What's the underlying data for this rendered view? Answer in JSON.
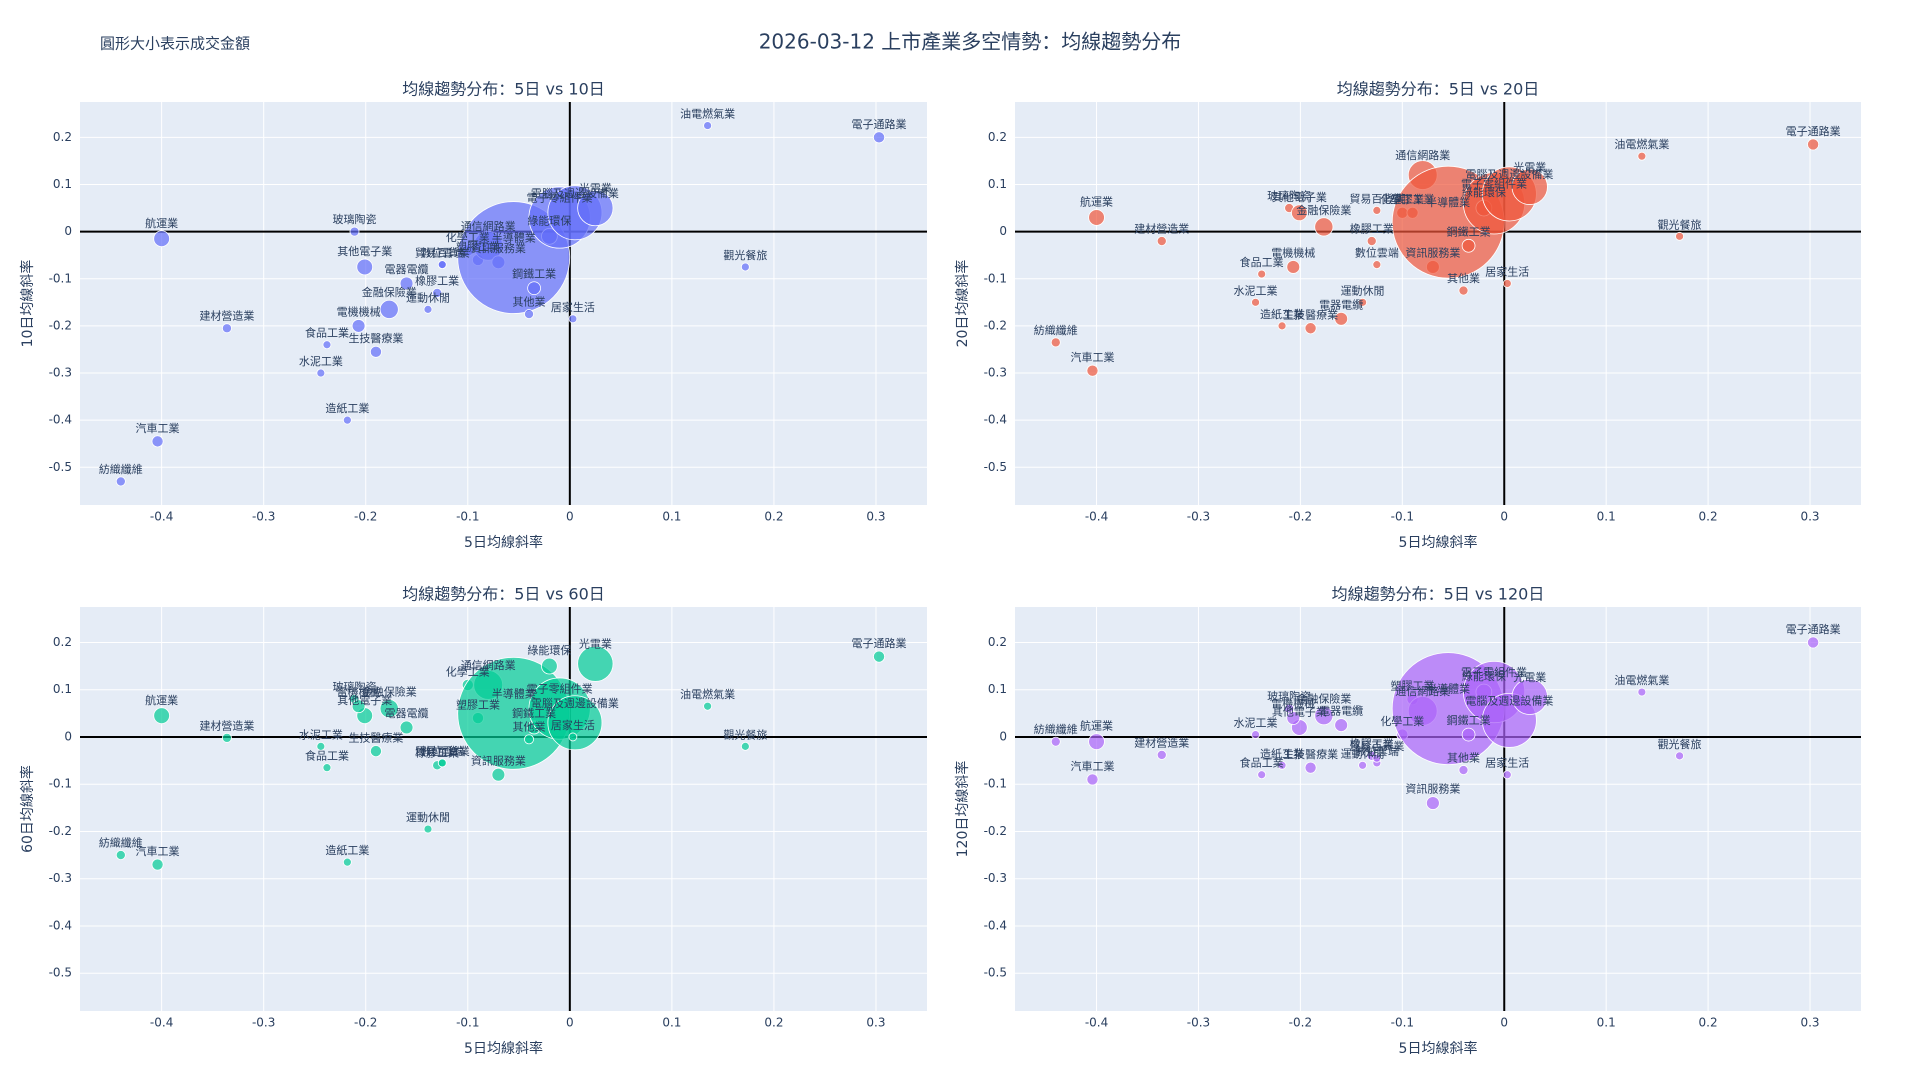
{
  "title": "2026-03-12 上市產業多空情勢：均線趨勢分布",
  "note": "圓形大小表示成交金額",
  "chart_data": [
    {
      "type": "scatter",
      "title": "均線趨勢分布：5日 vs 10日",
      "x_label": "5日均線斜率",
      "y_label": "10日均線斜率",
      "color": "#636efa",
      "categories": [
        "紡織纖維",
        "汽車工業",
        "航運業",
        "建材營造業",
        "水泥工業",
        "食品工業",
        "造紙工業",
        "玻璃陶瓷",
        "其他電子業",
        "電機機械",
        "生技醫療業",
        "金融保險業",
        "電器電纜",
        "運動休閒",
        "橡膠工業",
        "數位雲端",
        "貿易百貨業",
        "化學工業",
        "塑膠工業",
        "通信網路業",
        "資訊服務業",
        "半導體業",
        "其他業",
        "鋼鐵工業",
        "綠能環保",
        "電子零組件業",
        "電腦及週邊設備業",
        "居家生活",
        "光電業",
        "油電燃氣業",
        "觀光餐旅",
        "電子通路業"
      ],
      "x": [
        -0.44,
        -0.404,
        -0.4,
        -0.336,
        -0.244,
        -0.238,
        -0.218,
        -0.211,
        -0.201,
        -0.207,
        -0.19,
        -0.177,
        -0.16,
        -0.139,
        -0.13,
        -0.125,
        -0.125,
        -0.1,
        -0.09,
        -0.08,
        -0.07,
        -0.055,
        -0.04,
        -0.035,
        -0.02,
        -0.01,
        0.005,
        0.003,
        0.025,
        0.135,
        0.172,
        0.303
      ],
      "y": [
        -0.53,
        -0.445,
        -0.015,
        -0.205,
        -0.3,
        -0.24,
        -0.4,
        0.0,
        -0.075,
        -0.2,
        -0.255,
        -0.165,
        -0.11,
        -0.165,
        -0.13,
        -0.07,
        -0.07,
        -0.04,
        -0.06,
        -0.03,
        -0.065,
        -0.055,
        -0.175,
        -0.12,
        -0.01,
        0.03,
        0.04,
        -0.185,
        0.05,
        0.225,
        -0.075,
        0.2
      ],
      "sizes": [
        20,
        30,
        60,
        20,
        10,
        15,
        10,
        20,
        60,
        40,
        30,
        80,
        40,
        15,
        20,
        15,
        15,
        30,
        30,
        200,
        40,
        3000,
        20,
        40,
        60,
        900,
        700,
        10,
        300,
        15,
        10,
        30
      ],
      "xlim": [
        -0.48,
        0.35
      ],
      "ylim": [
        -0.58,
        0.275
      ],
      "xticks": [
        -0.4,
        -0.3,
        -0.2,
        -0.1,
        0,
        0.1,
        0.2,
        0.3
      ],
      "yticks": [
        -0.5,
        -0.4,
        -0.3,
        -0.2,
        -0.1,
        0,
        0.1,
        0.2
      ]
    },
    {
      "type": "scatter",
      "title": "均線趨勢分布：5日 vs 20日",
      "x_label": "5日均線斜率",
      "y_label": "20日均線斜率",
      "color": "#ef553b",
      "categories": [
        "紡織纖維",
        "汽車工業",
        "航運業",
        "建材營造業",
        "水泥工業",
        "食品工業",
        "造紙工業",
        "玻璃陶瓷",
        "其他電子業",
        "電機機械",
        "生技醫療業",
        "金融保險業",
        "電器電纜",
        "運動休閒",
        "橡膠工業",
        "數位雲端",
        "貿易百貨業",
        "化學工業",
        "塑膠工業",
        "通信網路業",
        "資訊服務業",
        "半導體業",
        "其他業",
        "鋼鐵工業",
        "綠能環保",
        "電子零組件業",
        "電腦及週邊設備業",
        "居家生活",
        "光電業",
        "油電燃氣業",
        "觀光餐旅",
        "電子通路業"
      ],
      "x": [
        -0.44,
        -0.404,
        -0.4,
        -0.336,
        -0.244,
        -0.238,
        -0.218,
        -0.211,
        -0.201,
        -0.207,
        -0.19,
        -0.177,
        -0.16,
        -0.139,
        -0.13,
        -0.125,
        -0.125,
        -0.1,
        -0.09,
        -0.08,
        -0.07,
        -0.055,
        -0.04,
        -0.035,
        -0.02,
        -0.01,
        0.005,
        0.003,
        0.025,
        0.135,
        0.172,
        0.303
      ],
      "y": [
        -0.235,
        -0.295,
        0.03,
        -0.02,
        -0.15,
        -0.09,
        -0.2,
        0.05,
        0.04,
        -0.075,
        -0.205,
        0.01,
        -0.185,
        -0.15,
        -0.02,
        -0.07,
        0.045,
        0.04,
        0.04,
        0.12,
        -0.075,
        0.02,
        -0.125,
        -0.03,
        0.05,
        0.06,
        0.08,
        -0.11,
        0.095,
        0.16,
        -0.01,
        0.185
      ],
      "sizes": [
        20,
        30,
        60,
        20,
        10,
        15,
        10,
        20,
        60,
        40,
        30,
        80,
        40,
        15,
        20,
        15,
        15,
        30,
        30,
        200,
        40,
        3000,
        20,
        40,
        60,
        900,
        700,
        10,
        300,
        15,
        10,
        30
      ],
      "xlim": [
        -0.48,
        0.35
      ],
      "ylim": [
        -0.58,
        0.275
      ],
      "xticks": [
        -0.4,
        -0.3,
        -0.2,
        -0.1,
        0,
        0.1,
        0.2,
        0.3
      ],
      "yticks": [
        -0.5,
        -0.4,
        -0.3,
        -0.2,
        -0.1,
        0,
        0.1,
        0.2
      ]
    },
    {
      "type": "scatter",
      "title": "均線趨勢分布：5日 vs 60日",
      "x_label": "5日均線斜率",
      "y_label": "60日均線斜率",
      "color": "#00cc96",
      "categories": [
        "紡織纖維",
        "汽車工業",
        "航運業",
        "建材營造業",
        "水泥工業",
        "食品工業",
        "造紙工業",
        "玻璃陶瓷",
        "其他電子業",
        "電機機械",
        "生技醫療業",
        "金融保險業",
        "電器電纜",
        "運動休閒",
        "橡膠工業",
        "數位雲端",
        "貿易百貨業",
        "化學工業",
        "塑膠工業",
        "通信網路業",
        "資訊服務業",
        "半導體業",
        "其他業",
        "鋼鐵工業",
        "綠能環保",
        "電子零組件業",
        "電腦及週邊設備業",
        "居家生活",
        "光電業",
        "油電燃氣業",
        "觀光餐旅",
        "電子通路業"
      ],
      "x": [
        -0.44,
        -0.404,
        -0.4,
        -0.336,
        -0.244,
        -0.238,
        -0.218,
        -0.211,
        -0.201,
        -0.207,
        -0.19,
        -0.177,
        -0.16,
        -0.139,
        -0.13,
        -0.125,
        -0.125,
        -0.1,
        -0.09,
        -0.08,
        -0.07,
        -0.055,
        -0.04,
        -0.035,
        -0.02,
        -0.01,
        0.005,
        0.003,
        0.025,
        0.135,
        0.172,
        0.303
      ],
      "y": [
        -0.25,
        -0.27,
        0.045,
        -0.002,
        -0.02,
        -0.065,
        -0.265,
        0.08,
        0.045,
        0.065,
        -0.03,
        0.06,
        0.02,
        -0.195,
        -0.06,
        -0.055,
        -0.055,
        0.11,
        0.04,
        0.11,
        -0.08,
        0.05,
        -0.005,
        0.02,
        0.15,
        0.06,
        0.03,
        0.0,
        0.155,
        0.065,
        -0.02,
        0.17
      ],
      "sizes": [
        20,
        30,
        60,
        20,
        10,
        15,
        10,
        20,
        60,
        40,
        30,
        80,
        40,
        15,
        20,
        15,
        15,
        30,
        30,
        200,
        40,
        3000,
        20,
        40,
        60,
        900,
        700,
        10,
        300,
        15,
        10,
        30
      ],
      "xlim": [
        -0.48,
        0.35
      ],
      "ylim": [
        -0.58,
        0.275
      ],
      "xticks": [
        -0.4,
        -0.3,
        -0.2,
        -0.1,
        0,
        0.1,
        0.2,
        0.3
      ],
      "yticks": [
        -0.5,
        -0.4,
        -0.3,
        -0.2,
        -0.1,
        0,
        0.1,
        0.2
      ]
    },
    {
      "type": "scatter",
      "title": "均線趨勢分布：5日 vs 120日",
      "x_label": "5日均線斜率",
      "y_label": "120日均線斜率",
      "color": "#ab63fa",
      "categories": [
        "紡織纖維",
        "汽車工業",
        "航運業",
        "建材營造業",
        "水泥工業",
        "食品工業",
        "造紙工業",
        "玻璃陶瓷",
        "其他電子業",
        "電機機械",
        "生技醫療業",
        "金融保險業",
        "電器電纜",
        "運動休閒",
        "橡膠工業",
        "數位雲端",
        "貿易百貨業",
        "化學工業",
        "塑膠工業",
        "通信網路業",
        "資訊服務業",
        "半導體業",
        "其他業",
        "鋼鐵工業",
        "綠能環保",
        "電子零組件業",
        "電腦及週邊設備業",
        "居家生活",
        "光電業",
        "油電燃氣業",
        "觀光餐旅",
        "電子通路業"
      ],
      "x": [
        -0.44,
        -0.404,
        -0.4,
        -0.336,
        -0.244,
        -0.238,
        -0.218,
        -0.211,
        -0.201,
        -0.207,
        -0.19,
        -0.177,
        -0.16,
        -0.139,
        -0.13,
        -0.125,
        -0.125,
        -0.1,
        -0.09,
        -0.08,
        -0.07,
        -0.055,
        -0.04,
        -0.035,
        -0.02,
        -0.01,
        0.005,
        0.003,
        0.025,
        0.135,
        0.172,
        0.303
      ],
      "y": [
        -0.01,
        -0.09,
        -0.01,
        -0.038,
        0.005,
        -0.08,
        -0.06,
        0.06,
        0.02,
        0.04,
        -0.065,
        0.045,
        0.025,
        -0.06,
        -0.04,
        -0.055,
        -0.045,
        0.005,
        0.08,
        0.055,
        -0.14,
        0.06,
        -0.07,
        0.005,
        0.095,
        0.095,
        0.035,
        -0.08,
        0.085,
        0.095,
        -0.04,
        0.2
      ],
      "sizes": [
        20,
        30,
        60,
        20,
        10,
        15,
        10,
        20,
        60,
        40,
        30,
        80,
        40,
        15,
        20,
        15,
        15,
        30,
        30,
        200,
        40,
        3000,
        20,
        40,
        60,
        900,
        700,
        10,
        300,
        15,
        10,
        30
      ],
      "xlim": [
        -0.48,
        0.35
      ],
      "ylim": [
        -0.58,
        0.275
      ],
      "xticks": [
        -0.4,
        -0.3,
        -0.2,
        -0.1,
        0,
        0.1,
        0.2,
        0.3
      ],
      "yticks": [
        -0.5,
        -0.4,
        -0.3,
        -0.2,
        -0.1,
        0,
        0.1,
        0.2
      ]
    }
  ]
}
